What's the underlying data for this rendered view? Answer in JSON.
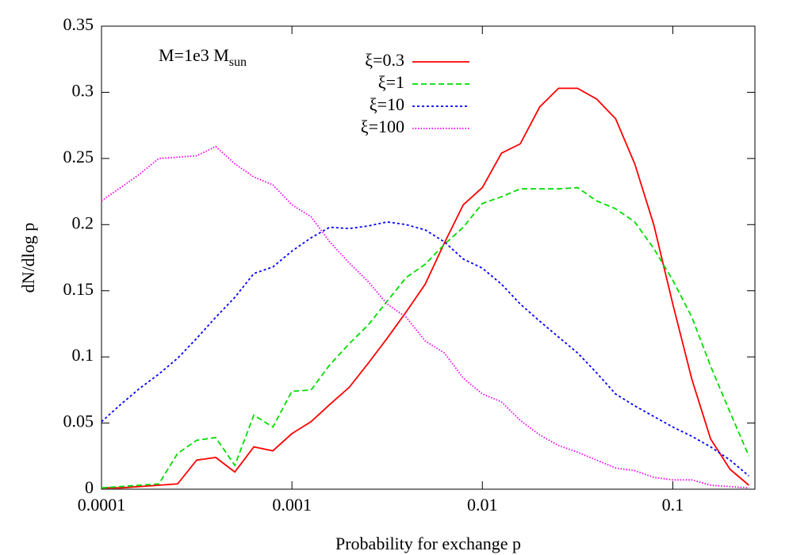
{
  "chart_data": {
    "type": "line",
    "xlabel": "Probability for exchange p",
    "ylabel": "dN/dlog p",
    "annotation": {
      "text": "M=1e3 M",
      "sub": "sun"
    },
    "xscale": "log",
    "xlim": [
      0.0001,
      0.27
    ],
    "ylim": [
      0,
      0.35
    ],
    "xticks": [
      0.0001,
      0.001,
      0.01,
      0.1
    ],
    "yticks": [
      0,
      0.05,
      0.1,
      0.15,
      0.2,
      0.25,
      0.3,
      0.35
    ],
    "grid": false,
    "legend": "top-center",
    "x": [
      0.0001,
      0.000126,
      0.000158,
      0.0002,
      0.000251,
      0.000316,
      0.000398,
      0.000501,
      0.000631,
      0.000794,
      0.001,
      0.00126,
      0.00158,
      0.002,
      0.00251,
      0.00316,
      0.00398,
      0.00501,
      0.00631,
      0.00794,
      0.01,
      0.0126,
      0.0158,
      0.02,
      0.0251,
      0.0316,
      0.0398,
      0.0501,
      0.0631,
      0.0794,
      0.1,
      0.126,
      0.158,
      0.2,
      0.251
    ],
    "series": [
      {
        "name": "ξ=0.3",
        "color": "#ff0000",
        "dash": "solid",
        "values": [
          0.001,
          0.001,
          0.002,
          0.003,
          0.004,
          0.022,
          0.024,
          0.013,
          0.032,
          0.029,
          0.042,
          0.051,
          0.064,
          0.077,
          0.095,
          0.114,
          0.134,
          0.155,
          0.186,
          0.215,
          0.228,
          0.254,
          0.261,
          0.289,
          0.303,
          0.303,
          0.295,
          0.28,
          0.246,
          0.2,
          0.14,
          0.083,
          0.038,
          0.015,
          0.003
        ]
      },
      {
        "name": "ξ=1",
        "color": "#00dd00",
        "dash": "dashed",
        "values": [
          0.001,
          0.002,
          0.003,
          0.004,
          0.027,
          0.037,
          0.039,
          0.018,
          0.056,
          0.047,
          0.074,
          0.075,
          0.094,
          0.11,
          0.124,
          0.142,
          0.16,
          0.17,
          0.185,
          0.198,
          0.216,
          0.221,
          0.227,
          0.227,
          0.227,
          0.228,
          0.218,
          0.212,
          0.202,
          0.182,
          0.158,
          0.13,
          0.093,
          0.058,
          0.025
        ]
      },
      {
        "name": "ξ=10",
        "color": "#0000ff",
        "dash": "short-dashed",
        "values": [
          0.051,
          0.064,
          0.076,
          0.087,
          0.099,
          0.114,
          0.13,
          0.145,
          0.163,
          0.168,
          0.18,
          0.19,
          0.198,
          0.197,
          0.199,
          0.202,
          0.2,
          0.196,
          0.187,
          0.174,
          0.167,
          0.155,
          0.14,
          0.127,
          0.115,
          0.103,
          0.088,
          0.072,
          0.063,
          0.055,
          0.047,
          0.04,
          0.032,
          0.022,
          0.01
        ]
      },
      {
        "name": "ξ=100",
        "color": "#ee00ee",
        "dash": "dotted",
        "values": [
          0.218,
          0.228,
          0.238,
          0.25,
          0.251,
          0.252,
          0.259,
          0.246,
          0.236,
          0.23,
          0.215,
          0.206,
          0.187,
          0.171,
          0.157,
          0.14,
          0.13,
          0.112,
          0.103,
          0.084,
          0.072,
          0.066,
          0.052,
          0.041,
          0.033,
          0.028,
          0.022,
          0.016,
          0.014,
          0.009,
          0.007,
          0.007,
          0.003,
          0.002,
          0.001
        ]
      }
    ]
  }
}
